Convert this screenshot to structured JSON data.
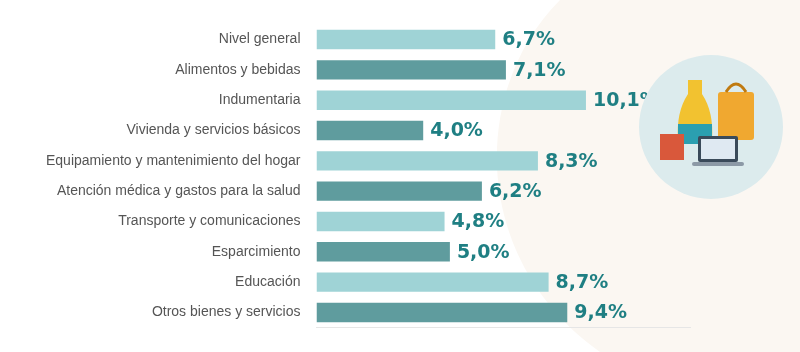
{
  "chart_data": {
    "type": "bar",
    "orientation": "horizontal",
    "categories": [
      "Nivel general",
      "Alimentos y bebidas",
      "Indumentaria",
      "Vivienda y servicios básicos",
      "Equipamiento y mantenimiento del hogar",
      "Atención médica y gastos para la salud",
      "Transporte y comunicaciones",
      "Esparcimiento",
      "Educación",
      "Otros bienes y servicios"
    ],
    "values": [
      6.7,
      7.1,
      10.1,
      4.0,
      8.3,
      6.2,
      4.8,
      5.0,
      8.7,
      9.4
    ],
    "value_labels": [
      "6,7%",
      "7,1%",
      "10,1%",
      "4,0%",
      "8,3%",
      "6,2%",
      "4,8%",
      "5,0%",
      "8,7%",
      "9,4%"
    ],
    "colors": [
      "#9fd3d6",
      "#5f9c9e",
      "#9fd3d6",
      "#5f9c9e",
      "#9fd3d6",
      "#5f9c9e",
      "#9fd3d6",
      "#5f9c9e",
      "#9fd3d6",
      "#5f9c9e"
    ],
    "xlim": [
      0,
      14
    ],
    "data_labels": true,
    "tick_labels": "y",
    "grid": false
  }
}
